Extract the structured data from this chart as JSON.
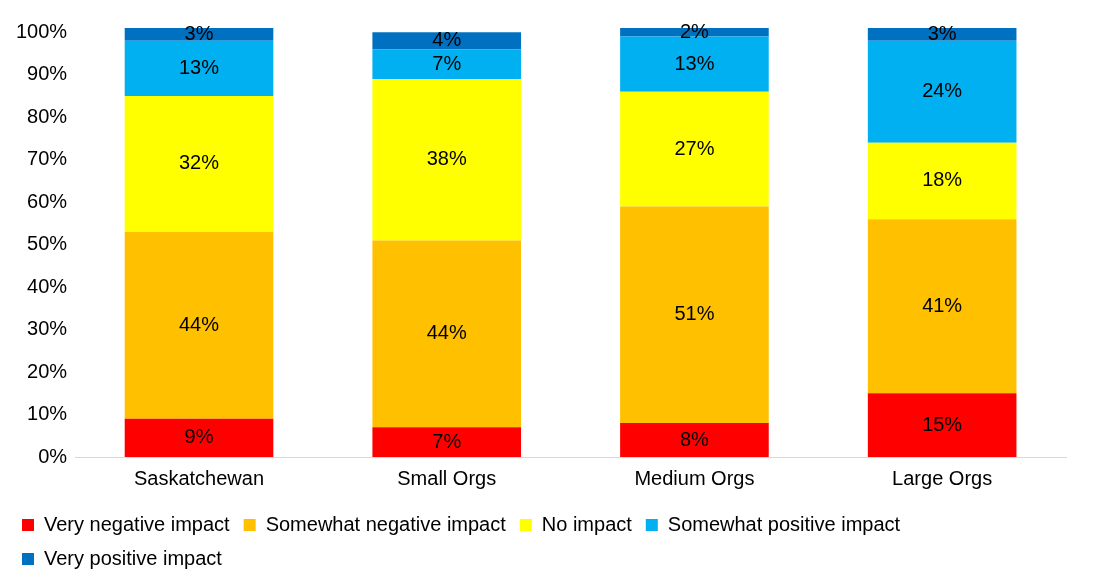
{
  "chart_data": {
    "type": "bar",
    "stacked": true,
    "categories": [
      "Saskatchewan",
      "Small Orgs",
      "Medium Orgs",
      "Large Orgs"
    ],
    "series": [
      {
        "name": "Very negative impact",
        "color": "#ff0000",
        "values": [
          9,
          7,
          8,
          15
        ],
        "value_labels": [
          "9%",
          "7%",
          "8%",
          "15%"
        ]
      },
      {
        "name": "Somewhat negative impact",
        "color": "#ffc000",
        "values": [
          44,
          44,
          51,
          41
        ],
        "value_labels": [
          "44%",
          "44%",
          "51%",
          "41%"
        ]
      },
      {
        "name": "No impact",
        "color": "#ffff00",
        "values": [
          32,
          38,
          27,
          18
        ],
        "value_labels": [
          "32%",
          "38%",
          "27%",
          "18%"
        ]
      },
      {
        "name": "Somewhat positive impact",
        "color": "#00b0f0",
        "values": [
          13,
          7,
          13,
          24
        ],
        "value_labels": [
          "13%",
          "7%",
          "13%",
          "24%"
        ]
      },
      {
        "name": "Very positive impact",
        "color": "#0070c0",
        "values": [
          3,
          4,
          2,
          3
        ],
        "value_labels": [
          "3%",
          "4%",
          "2%",
          "3%"
        ]
      }
    ],
    "ylim": [
      0,
      101
    ],
    "yticks": [
      {
        "value": 0,
        "label": "0%"
      },
      {
        "value": 10,
        "label": "10%"
      },
      {
        "value": 20,
        "label": "20%"
      },
      {
        "value": 30,
        "label": "30%"
      },
      {
        "value": 40,
        "label": "40%"
      },
      {
        "value": 50,
        "label": "50%"
      },
      {
        "value": 60,
        "label": "60%"
      },
      {
        "value": 70,
        "label": "70%"
      },
      {
        "value": 80,
        "label": "80%"
      },
      {
        "value": 90,
        "label": "90%"
      },
      {
        "value": 100,
        "label": "100%"
      }
    ],
    "grid": false,
    "legend": "bottom"
  }
}
